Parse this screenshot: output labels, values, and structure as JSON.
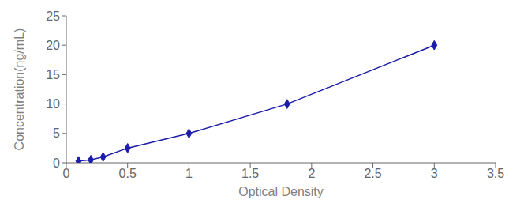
{
  "chart_data": {
    "type": "line",
    "xlabel": "Optical Density",
    "ylabel": "Concentration(ng/mL)",
    "x": [
      0.1,
      0.2,
      0.3,
      0.5,
      1.0,
      1.8,
      3.0
    ],
    "values": [
      0.3,
      0.5,
      1.0,
      2.5,
      5.0,
      10.0,
      20.0
    ],
    "color": "#1C1CAA",
    "marker": "diamond",
    "xlim": [
      0,
      3.5
    ],
    "ylim": [
      0,
      25
    ],
    "xticks": [
      0,
      0.5,
      1,
      1.5,
      2,
      2.5,
      3,
      3.5
    ],
    "yticks": [
      0,
      5,
      10,
      15,
      20,
      25
    ],
    "grid": false
  }
}
